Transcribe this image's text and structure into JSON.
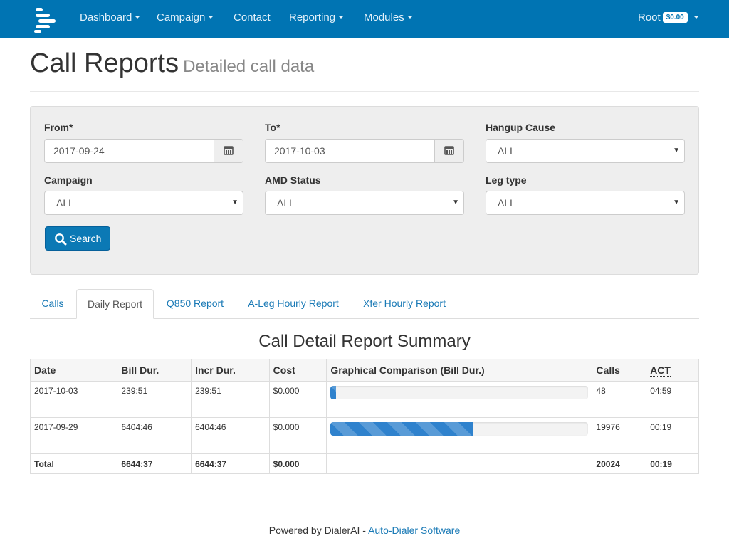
{
  "navbar": {
    "logo_icon": "bars-logo-icon",
    "items": [
      {
        "label": "Dashboard",
        "dropdown": true
      },
      {
        "label": "Campaign",
        "dropdown": true
      },
      {
        "label": "Contact",
        "dropdown": false
      },
      {
        "label": "Reporting",
        "dropdown": true
      },
      {
        "label": "Modules",
        "dropdown": true
      }
    ],
    "user": {
      "name": "Root",
      "balance": "$0.00"
    }
  },
  "header": {
    "title": "Call Reports",
    "subtitle": "Detailed call data"
  },
  "filters": {
    "from": {
      "label": "From*",
      "value": "2017-09-24"
    },
    "to": {
      "label": "To*",
      "value": "2017-10-03"
    },
    "hangup_cause": {
      "label": "Hangup Cause",
      "value": "ALL"
    },
    "campaign": {
      "label": "Campaign",
      "value": "ALL"
    },
    "amd_status": {
      "label": "AMD Status",
      "value": "ALL"
    },
    "leg_type": {
      "label": "Leg type",
      "value": "ALL"
    },
    "search_label": "Search"
  },
  "tabs": [
    {
      "label": "Calls",
      "active": false
    },
    {
      "label": "Daily Report",
      "active": true
    },
    {
      "label": "Q850 Report",
      "active": false
    },
    {
      "label": "A-Leg Hourly Report",
      "active": false
    },
    {
      "label": "Xfer Hourly Report",
      "active": false
    }
  ],
  "report": {
    "title": "Call Detail Report Summary",
    "columns": [
      "Date",
      "Bill Dur.",
      "Incr Dur.",
      "Cost",
      "Graphical Comparison (Bill Dur.)",
      "Calls",
      "ACT"
    ],
    "rows": [
      {
        "date": "2017-10-03",
        "bill_dur": "239:51",
        "incr_dur": "239:51",
        "cost": "$0.000",
        "bar_percent": 2,
        "calls": "48",
        "act": "04:59"
      },
      {
        "date": "2017-09-29",
        "bill_dur": "6404:46",
        "incr_dur": "6404:46",
        "cost": "$0.000",
        "bar_percent": 55,
        "calls": "19976",
        "act": "00:19"
      }
    ],
    "total": {
      "label": "Total",
      "bill_dur": "6644:37",
      "incr_dur": "6644:37",
      "cost": "$0.000",
      "calls": "20024",
      "act": "00:19"
    }
  },
  "footer": {
    "text": "Powered by DialerAI - ",
    "link": "Auto-Dialer Software"
  },
  "colors": {
    "navbar": "#0074b3",
    "button": "#0b79b5",
    "link": "#1a7ab6",
    "bar": "#2f82cd"
  }
}
